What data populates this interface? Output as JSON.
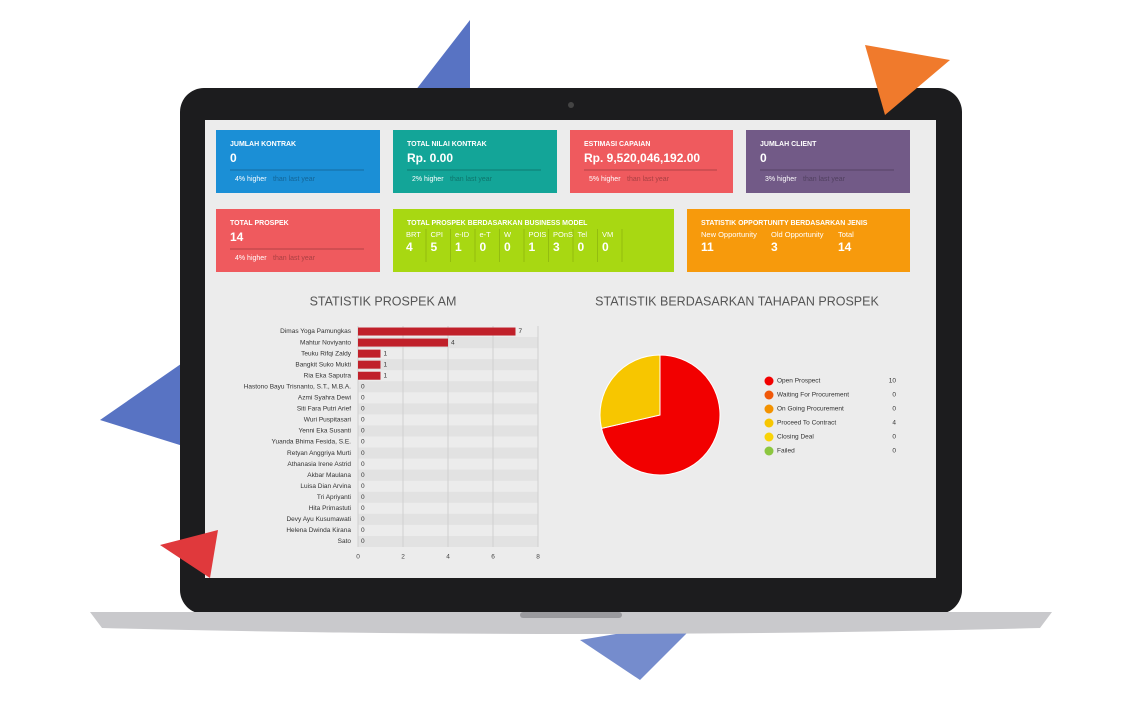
{
  "cards": [
    {
      "title": "JUMLAH KONTRAK",
      "value": "0",
      "change": "4% higher",
      "note": "than last year",
      "color": "#1b8fd6"
    },
    {
      "title": "TOTAL NILAI KONTRAK",
      "value": "Rp. 0.00",
      "change": "2% higher",
      "note": "than last year",
      "color": "#13a598"
    },
    {
      "title": "ESTIMASI CAPAIAN",
      "value": "Rp. 9,520,046,192.00",
      "change": "5% higher",
      "note": "than last year",
      "color": "#ef5a5e"
    },
    {
      "title": "JUMLAH CLIENT",
      "value": "0",
      "change": "3% higher",
      "note": "than last year",
      "color": "#725a87"
    },
    {
      "title": "TOTAL PROSPEK",
      "value": "14",
      "change": "4% higher",
      "note": "than last year",
      "color": "#ef5a5e"
    }
  ],
  "business_model": {
    "title": "TOTAL PROSPEK BERDASARKAN BUSINESS MODEL",
    "color": "#a8d812",
    "labels": [
      "BRT",
      "CPI",
      "e-ID",
      "e-T",
      "W",
      "POIS",
      "POnS",
      "Tel",
      "VM"
    ],
    "values": [
      4,
      5,
      1,
      0,
      0,
      1,
      3,
      0,
      0
    ]
  },
  "opportunity": {
    "title": "STATISTIK OPPORTUNITY BERDASARKAN JENIS",
    "color": "#f79a0c",
    "labels": [
      "New Opportunity",
      "Old Opportunity",
      "Total"
    ],
    "values": [
      11,
      3,
      14
    ]
  },
  "bar_chart": {
    "type": "bar",
    "title": "STATISTIK PROSPEK AM",
    "color": "#c0202a",
    "categories": [
      "Dimas Yoga Pamungkas",
      "Mahtur Noviyanto",
      "Teuku Rifqi Zaldy",
      "Bangkit Suko Mukti",
      "Ria Eka Saputra",
      "Hastono Bayu Trisnanto, S.T., M.B.A.",
      "Azmi Syahra Dewi",
      "Siti Fara Putri Arief",
      "Wuri Puspitasari",
      "Yenni Eka Susanti",
      "Yuanda Bhima Fesida, S.E.",
      "Retyan Anggriya Murti",
      "Athanasia Irene Astrid",
      "Akbar Maulana",
      "Luisa Dian Arvina",
      "Tri Apriyanti",
      "Hita Primastuti",
      "Devy Ayu Kusumawati",
      "Helena Dwinda Kirana",
      "Sato"
    ],
    "values": [
      7,
      4,
      1,
      1,
      1,
      0,
      0,
      0,
      0,
      0,
      0,
      0,
      0,
      0,
      0,
      0,
      0,
      0,
      0,
      0
    ],
    "xlim": [
      0,
      8
    ],
    "xticks": [
      0,
      2,
      4,
      6,
      8
    ],
    "grid": true
  },
  "pie_chart": {
    "type": "pie",
    "title": "STATISTIK BERDASARKAN TAHAPAN PROSPEK",
    "series": [
      {
        "name": "Open Prospect",
        "color": "#f20000",
        "value": 10
      },
      {
        "name": "Waiting For Procurement",
        "color": "#f0580a",
        "value": 0
      },
      {
        "name": "On Going Procurement",
        "color": "#f39200",
        "value": 0
      },
      {
        "name": "Proceed To Contract",
        "color": "#f7c600",
        "value": 4
      },
      {
        "name": "Closing Deal",
        "color": "#f9d308",
        "value": 0
      },
      {
        "name": "Failed",
        "color": "#8cc63f",
        "value": 0
      }
    ]
  }
}
